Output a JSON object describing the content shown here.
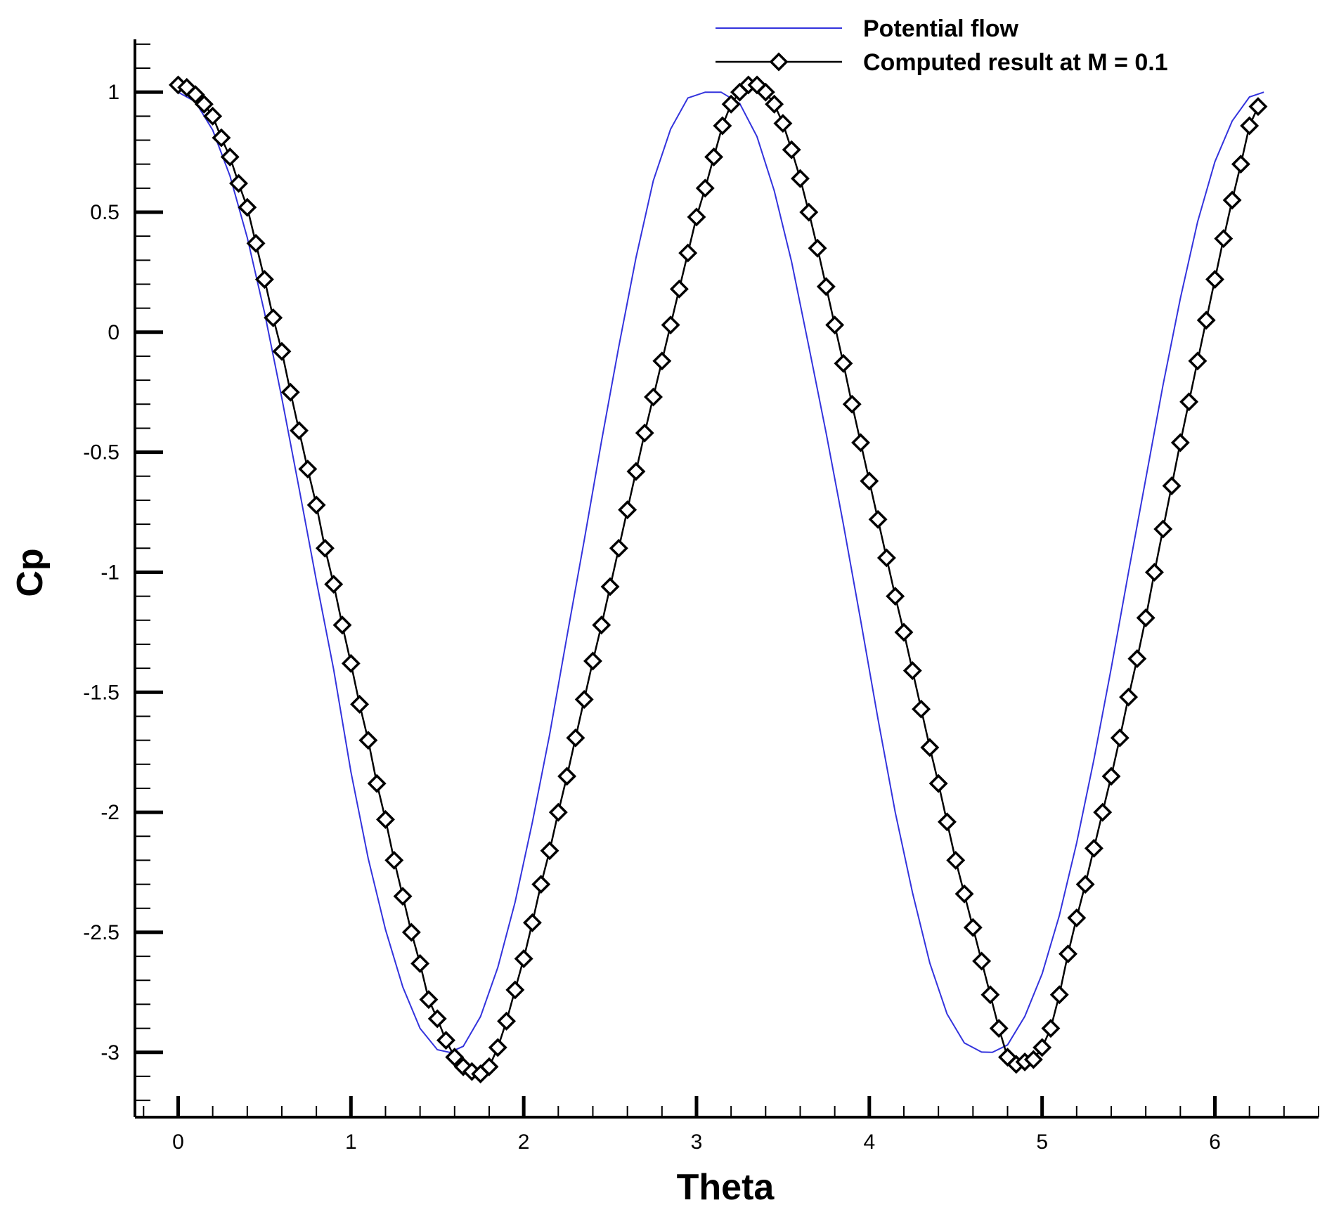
{
  "chart_data": {
    "type": "line",
    "title": "",
    "xlabel": "Theta",
    "ylabel": "Cp",
    "xlim": [
      -0.25,
      6.6
    ],
    "ylim": [
      -3.27,
      1.22
    ],
    "xticks": [
      0,
      1,
      2,
      3,
      4,
      5,
      6
    ],
    "xtick_labels": [
      "0",
      "1",
      "2",
      "3",
      "4",
      "5",
      "6"
    ],
    "yticks": [
      1,
      0.5,
      0,
      -0.5,
      -1,
      -1.5,
      -2,
      -2.5,
      -3
    ],
    "ytick_labels": [
      "1",
      "0.5",
      "0",
      "-0.5",
      "-1",
      "-1.5",
      "-2",
      "-2.5",
      "-3"
    ],
    "grid": false,
    "legend_position": "top-right",
    "colors": {
      "potential": "#3333dd",
      "computed": "#000000"
    },
    "series": [
      {
        "name": "Potential flow",
        "style": "line",
        "color": "#3333dd",
        "x": [
          0,
          0.1,
          0.2,
          0.3,
          0.4,
          0.5,
          0.6,
          0.7,
          0.8,
          0.9,
          1.0,
          1.1,
          1.2,
          1.3,
          1.4,
          1.5,
          1.571,
          1.65,
          1.75,
          1.85,
          1.95,
          2.05,
          2.15,
          2.25,
          2.35,
          2.45,
          2.55,
          2.65,
          2.75,
          2.85,
          2.95,
          3.05,
          3.142,
          3.25,
          3.35,
          3.45,
          3.55,
          3.65,
          3.75,
          3.85,
          3.95,
          4.05,
          4.15,
          4.25,
          4.35,
          4.45,
          4.55,
          4.65,
          4.712,
          4.8,
          4.9,
          5.0,
          5.1,
          5.2,
          5.3,
          5.4,
          5.5,
          5.6,
          5.7,
          5.8,
          5.9,
          6.0,
          6.1,
          6.2,
          6.283
        ],
        "y": [
          1.0,
          0.96,
          0.842,
          0.651,
          0.394,
          0.081,
          -0.275,
          -0.65,
          -1.035,
          -1.405,
          -1.832,
          -2.193,
          -2.489,
          -2.728,
          -2.9,
          -2.989,
          -3.0,
          -2.975,
          -2.851,
          -2.646,
          -2.375,
          -2.042,
          -1.676,
          -1.268,
          -0.867,
          -0.454,
          -0.06,
          0.311,
          0.631,
          0.846,
          0.976,
          1.0,
          1.0,
          0.953,
          0.815,
          0.589,
          0.294,
          -0.06,
          -0.42,
          -0.8,
          -1.2,
          -1.61,
          -2.0,
          -2.335,
          -2.628,
          -2.84,
          -2.961,
          -2.999,
          -3.0,
          -2.969,
          -2.85,
          -2.673,
          -2.43,
          -2.128,
          -1.78,
          -1.4,
          -1.0,
          -0.61,
          -0.22,
          0.14,
          0.46,
          0.71,
          0.88,
          0.98,
          1.0
        ]
      },
      {
        "name": "Computed result at M = 0.1",
        "style": "line+diamond",
        "color": "#000000",
        "x": [
          0,
          0.05,
          0.1,
          0.15,
          0.2,
          0.25,
          0.3,
          0.35,
          0.4,
          0.45,
          0.5,
          0.55,
          0.6,
          0.65,
          0.7,
          0.75,
          0.8,
          0.85,
          0.9,
          0.95,
          1.0,
          1.05,
          1.1,
          1.15,
          1.2,
          1.25,
          1.3,
          1.35,
          1.4,
          1.45,
          1.5,
          1.55,
          1.6,
          1.65,
          1.7,
          1.75,
          1.8,
          1.85,
          1.9,
          1.95,
          2.0,
          2.05,
          2.1,
          2.15,
          2.2,
          2.25,
          2.3,
          2.35,
          2.4,
          2.45,
          2.5,
          2.55,
          2.6,
          2.65,
          2.7,
          2.75,
          2.8,
          2.85,
          2.9,
          2.95,
          3.0,
          3.05,
          3.1,
          3.15,
          3.2,
          3.25,
          3.3,
          3.35,
          3.4,
          3.45,
          3.5,
          3.55,
          3.6,
          3.65,
          3.7,
          3.75,
          3.8,
          3.85,
          3.9,
          3.95,
          4.0,
          4.05,
          4.1,
          4.15,
          4.2,
          4.25,
          4.3,
          4.35,
          4.4,
          4.45,
          4.5,
          4.55,
          4.6,
          4.65,
          4.7,
          4.75,
          4.8,
          4.85,
          4.9,
          4.95,
          5.0,
          5.05,
          5.1,
          5.15,
          5.2,
          5.25,
          5.3,
          5.35,
          5.4,
          5.45,
          5.5,
          5.55,
          5.6,
          5.65,
          5.7,
          5.75,
          5.8,
          5.85,
          5.9,
          5.95,
          6.0,
          6.05,
          6.1,
          6.15,
          6.2,
          6.25
        ],
        "y": [
          1.03,
          1.02,
          0.99,
          0.95,
          0.9,
          0.81,
          0.73,
          0.62,
          0.52,
          0.37,
          0.22,
          0.06,
          -0.08,
          -0.25,
          -0.41,
          -0.57,
          -0.72,
          -0.9,
          -1.05,
          -1.22,
          -1.38,
          -1.55,
          -1.7,
          -1.88,
          -2.03,
          -2.2,
          -2.35,
          -2.5,
          -2.63,
          -2.78,
          -2.86,
          -2.95,
          -3.02,
          -3.06,
          -3.08,
          -3.09,
          -3.06,
          -2.98,
          -2.87,
          -2.74,
          -2.61,
          -2.46,
          -2.3,
          -2.16,
          -2.0,
          -1.85,
          -1.69,
          -1.53,
          -1.37,
          -1.22,
          -1.06,
          -0.9,
          -0.74,
          -0.58,
          -0.42,
          -0.27,
          -0.12,
          0.03,
          0.18,
          0.33,
          0.48,
          0.6,
          0.73,
          0.86,
          0.95,
          1.0,
          1.03,
          1.03,
          1.0,
          0.95,
          0.87,
          0.76,
          0.64,
          0.5,
          0.35,
          0.19,
          0.03,
          -0.13,
          -0.3,
          -0.46,
          -0.62,
          -0.78,
          -0.94,
          -1.1,
          -1.25,
          -1.41,
          -1.57,
          -1.73,
          -1.88,
          -2.04,
          -2.2,
          -2.34,
          -2.48,
          -2.62,
          -2.76,
          -2.9,
          -3.02,
          -3.05,
          -3.04,
          -3.03,
          -2.98,
          -2.9,
          -2.76,
          -2.59,
          -2.44,
          -2.3,
          -2.15,
          -2.0,
          -1.85,
          -1.69,
          -1.52,
          -1.36,
          -1.19,
          -1.0,
          -0.82,
          -0.64,
          -0.46,
          -0.29,
          -0.12,
          0.05,
          0.22,
          0.39,
          0.55,
          0.7,
          0.86,
          0.94
        ]
      }
    ]
  }
}
